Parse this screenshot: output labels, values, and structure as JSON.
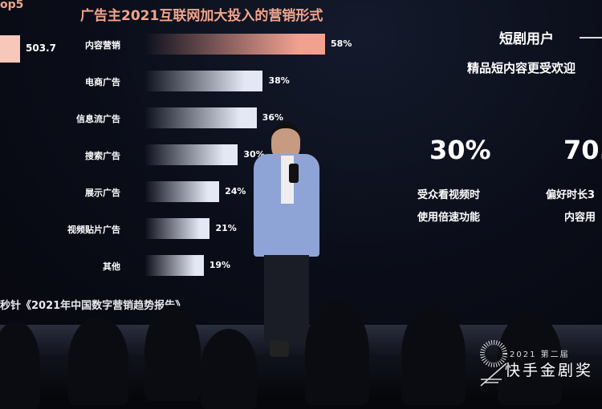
{
  "slide": {
    "title": "广告主2021互联网加大投入的营销形式",
    "left_partial_title": "op5",
    "left_partial_value": "503.7",
    "source": "秒针《2021年中国数字营销趋势报告》",
    "bars": [
      {
        "label": "内容营销",
        "value": 58,
        "text": "58%",
        "color": "#f2a090"
      },
      {
        "label": "电商广告",
        "value": 38,
        "text": "38%",
        "color": "#e4e8f4"
      },
      {
        "label": "信息流广告",
        "value": 36,
        "text": "36%",
        "color": "#e4e8f4"
      },
      {
        "label": "搜索广告",
        "value": 30,
        "text": "30%",
        "color": "#e4e8f4"
      },
      {
        "label": "展示广告",
        "value": 24,
        "text": "24%",
        "color": "#e4e8f4"
      },
      {
        "label": "视频贴片广告",
        "value": 21,
        "text": "21%",
        "color": "#e4e8f4"
      },
      {
        "label": "其他",
        "value": 19,
        "text": "19%",
        "color": "#e4e8f4"
      }
    ],
    "right": {
      "heading": "短剧用户",
      "subheading": "精品短内容更受欢迎",
      "stat1": "30%",
      "stat1_desc1": "受众看视频时",
      "stat1_desc2": "使用倍速功能",
      "stat2": "70.",
      "stat2_desc1": "偏好时长3",
      "stat2_desc2": "内容用"
    }
  },
  "logo": {
    "year": "2021 第二届",
    "name": "快手金剧奖"
  }
}
